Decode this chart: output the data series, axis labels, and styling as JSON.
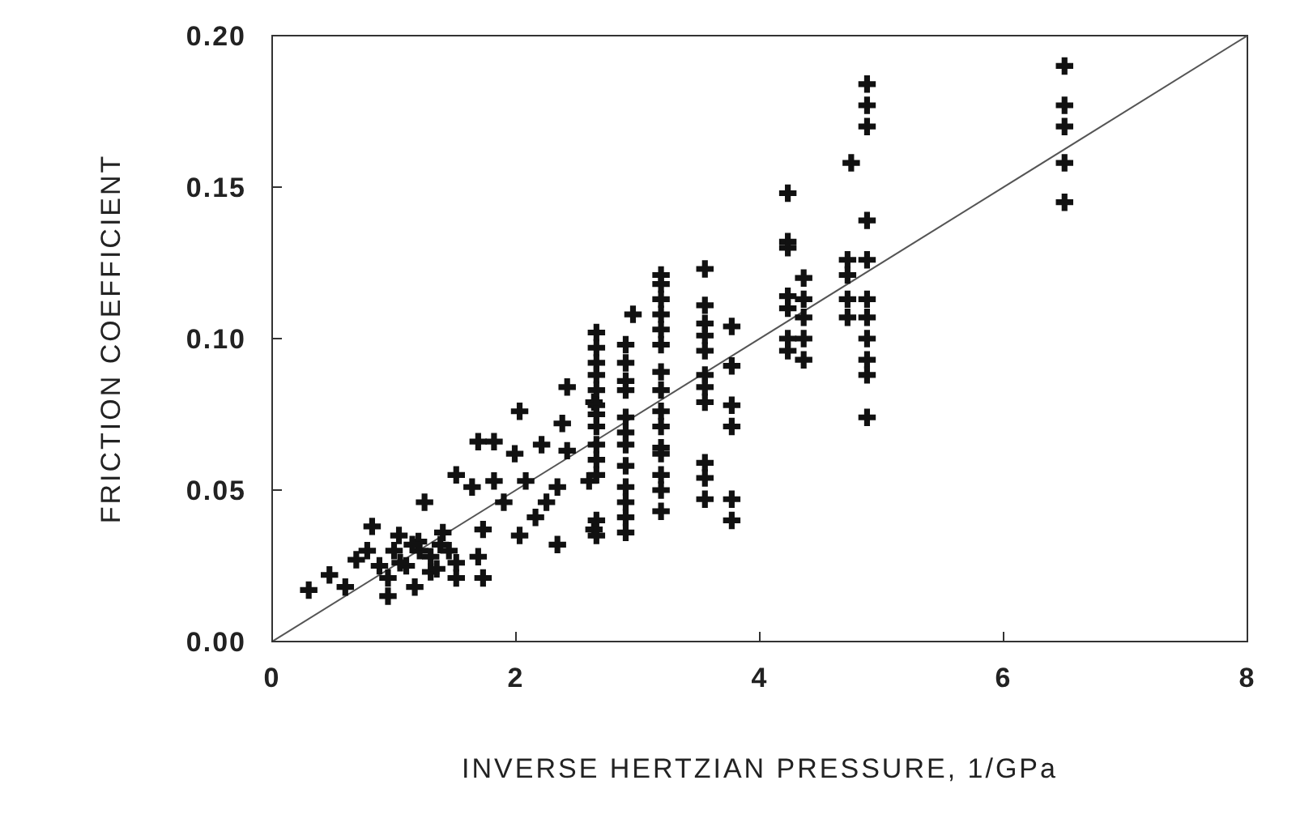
{
  "chart_data": {
    "type": "scatter",
    "xlabel": "INVERSE HERTZIAN PRESSURE, 1/GPa",
    "ylabel": "FRICTION COEFFICIENT",
    "xlim": [
      0,
      8
    ],
    "ylim": [
      0,
      0.2
    ],
    "xticks": [
      0,
      2,
      4,
      6,
      8
    ],
    "yticks": [
      {
        "value": 0,
        "label": "0.00"
      },
      {
        "value": 0.05,
        "label": "0.05"
      },
      {
        "value": 0.1,
        "label": "0.10"
      },
      {
        "value": 0.15,
        "label": "0.15"
      },
      {
        "value": 0.2,
        "label": "0.20"
      }
    ],
    "grid": false,
    "marker": "cross",
    "series": [
      {
        "color": "#111111",
        "x": [
          0.3,
          0.47,
          0.6,
          0.69,
          0.82,
          0.78,
          0.95,
          0.95,
          1.04,
          1.17,
          1.21,
          1.25,
          1.3,
          1.38,
          1.51,
          1.51,
          1.51,
          1.64,
          1.69,
          1.73,
          1.69,
          1.82,
          1.82,
          1.9,
          1.99,
          2.03,
          2.03,
          2.08,
          2.16,
          2.21,
          2.25,
          2.34,
          2.34,
          2.38,
          2.42,
          2.42,
          2.6,
          2.64,
          2.64,
          1.73,
          1.0,
          1.1,
          1.2,
          1.3,
          1.4,
          1.05,
          1.15,
          1.35,
          1.45,
          0.88,
          2.66,
          2.66,
          2.66,
          2.66,
          2.66,
          2.66,
          2.66,
          2.66,
          2.66,
          2.66,
          2.66,
          2.66,
          2.66,
          2.9,
          2.9,
          2.9,
          2.9,
          2.9,
          2.9,
          2.9,
          2.9,
          2.9,
          2.9,
          2.9,
          2.9,
          2.96,
          3.19,
          3.19,
          3.19,
          3.19,
          3.19,
          3.19,
          3.19,
          3.19,
          3.19,
          3.19,
          3.19,
          3.19,
          3.19,
          3.19,
          3.19,
          3.55,
          3.55,
          3.55,
          3.55,
          3.55,
          3.55,
          3.55,
          3.55,
          3.55,
          3.55,
          3.55,
          3.77,
          3.77,
          3.77,
          3.77,
          3.77,
          3.77,
          4.23,
          4.23,
          4.23,
          4.23,
          4.23,
          4.23,
          4.23,
          4.36,
          4.36,
          4.36,
          4.36,
          4.36,
          4.72,
          4.72,
          4.72,
          4.72,
          4.75,
          4.88,
          4.88,
          4.88,
          4.88,
          4.88,
          4.88,
          4.88,
          4.88,
          4.88,
          4.88,
          4.88,
          6.5,
          6.5,
          6.5,
          6.5,
          6.5
        ],
        "values": [
          0.017,
          0.022,
          0.018,
          0.027,
          0.038,
          0.03,
          0.015,
          0.021,
          0.035,
          0.018,
          0.03,
          0.046,
          0.023,
          0.032,
          0.021,
          0.055,
          0.026,
          0.051,
          0.028,
          0.037,
          0.066,
          0.066,
          0.053,
          0.046,
          0.062,
          0.076,
          0.035,
          0.053,
          0.041,
          0.065,
          0.046,
          0.032,
          0.051,
          0.072,
          0.063,
          0.084,
          0.053,
          0.037,
          0.079,
          0.021,
          0.03,
          0.025,
          0.033,
          0.028,
          0.036,
          0.026,
          0.032,
          0.024,
          0.03,
          0.025,
          0.102,
          0.097,
          0.092,
          0.088,
          0.083,
          0.078,
          0.075,
          0.071,
          0.065,
          0.06,
          0.055,
          0.04,
          0.035,
          0.098,
          0.092,
          0.086,
          0.083,
          0.074,
          0.069,
          0.065,
          0.058,
          0.051,
          0.046,
          0.041,
          0.036,
          0.108,
          0.121,
          0.118,
          0.113,
          0.108,
          0.103,
          0.098,
          0.089,
          0.083,
          0.076,
          0.071,
          0.064,
          0.062,
          0.055,
          0.05,
          0.043,
          0.123,
          0.111,
          0.105,
          0.101,
          0.096,
          0.088,
          0.084,
          0.079,
          0.059,
          0.054,
          0.047,
          0.104,
          0.091,
          0.078,
          0.071,
          0.047,
          0.04,
          0.148,
          0.132,
          0.13,
          0.114,
          0.11,
          0.1,
          0.096,
          0.12,
          0.113,
          0.107,
          0.1,
          0.093,
          0.126,
          0.121,
          0.113,
          0.107,
          0.158,
          0.184,
          0.177,
          0.17,
          0.139,
          0.126,
          0.113,
          0.107,
          0.1,
          0.093,
          0.088,
          0.074,
          0.19,
          0.177,
          0.17,
          0.158,
          0.145
        ]
      },
      {
        "type": "line",
        "color": "#555555",
        "x": [
          0,
          8
        ],
        "values": [
          0,
          0.2
        ],
        "marker": "none",
        "line_style": "solid"
      }
    ]
  }
}
